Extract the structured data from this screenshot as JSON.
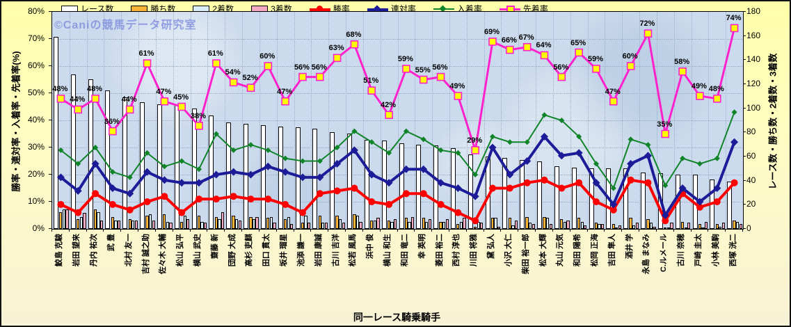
{
  "watermark": "©Caniの競馬データ研究室",
  "left_axis": {
    "title": "勝率・連対率・入着率・先着率(%)",
    "ticks": [
      "80%",
      "70%",
      "60%",
      "50%",
      "40%",
      "30%",
      "20%",
      "10%",
      "0%"
    ],
    "max": 80,
    "step": 10
  },
  "right_axis": {
    "title": "レース数・勝ち数・2着数・3着数",
    "ticks": [
      "180",
      "160",
      "140",
      "120",
      "100",
      "80",
      "60",
      "40",
      "20",
      "0"
    ],
    "max": 180,
    "step": 20
  },
  "x_axis": {
    "title": "同一レース騎乗騎手"
  },
  "chart_data": {
    "type": "bar_line_combo",
    "grid": "dotted",
    "left_ylim": [
      0,
      80
    ],
    "right_ylim": [
      0,
      180
    ],
    "legend_position": "top",
    "categories": [
      "鮫島 克駿",
      "岩田 望来",
      "丹内 祐次",
      "武 豊",
      "北村 友一",
      "吉村 誠之助",
      "佐々木 大輔",
      "松山 弘平",
      "横山 武史",
      "齋藤 新",
      "団野 大成",
      "高杉 吏麒",
      "田口 貫太",
      "坂井 瑠星",
      "池添 謙一",
      "岩田 康誠",
      "古川 吉洋",
      "松若 風馬",
      "浜中 俊",
      "横山 和生",
      "和田 竜二",
      "幸 英明",
      "菱田 裕二",
      "西村 淳也",
      "川田 将雅",
      "黛 弘人",
      "小沢 大仁",
      "柴田 裕一郎",
      "松本 大輝",
      "丸山 元気",
      "和田 陽希",
      "松岡 正海",
      "吉田 隼人",
      "酒井 学",
      "永島 まなみ",
      "C.ルメール",
      "古川 奈穂",
      "戸崎 圭太",
      "小林 美駒",
      "西塚 洸二"
    ],
    "bar_series": [
      {
        "key": "races",
        "name": "レース数",
        "color": "#FFFFFF",
        "axis": "right",
        "values": [
          159,
          128,
          124,
          115,
          109,
          105,
          103,
          103,
          100,
          94,
          88,
          87,
          86,
          85,
          84,
          83,
          80,
          79,
          74,
          73,
          71,
          70,
          69,
          67,
          62,
          60,
          59,
          57,
          56,
          52,
          51,
          50,
          50,
          50,
          47,
          46,
          45,
          45,
          41,
          39
        ]
      },
      {
        "key": "wins",
        "name": "勝ち数",
        "color": "#FFB53A",
        "axis": "right",
        "values": [
          14,
          8,
          16,
          10,
          8,
          11,
          12,
          6,
          11,
          10,
          11,
          10,
          9,
          8,
          5,
          11,
          11,
          12,
          7,
          7,
          9,
          9,
          6,
          4,
          2,
          9,
          9,
          10,
          10,
          8,
          9,
          5,
          4,
          9,
          8,
          1,
          6,
          4,
          4,
          7
        ]
      },
      {
        "key": "seconds",
        "name": "2着数",
        "color": "#D9EDF8",
        "axis": "right",
        "values": [
          16,
          10,
          14,
          7,
          7,
          12,
          6,
          11,
          6,
          8,
          8,
          8,
          10,
          10,
          11,
          5,
          8,
          11,
          7,
          6,
          6,
          6,
          6,
          6,
          6,
          9,
          3,
          5,
          9,
          6,
          6,
          4,
          1,
          3,
          5,
          1,
          1,
          1,
          2,
          6
        ]
      },
      {
        "key": "thirds",
        "name": "3着数",
        "color": "#F7A9C4",
        "axis": "right",
        "values": [
          16,
          13,
          7,
          7,
          7,
          7,
          5,
          8,
          5,
          14,
          7,
          10,
          5,
          4,
          5,
          5,
          5,
          6,
          9,
          8,
          10,
          8,
          8,
          9,
          5,
          2,
          7,
          4,
          4,
          7,
          3,
          4,
          3,
          5,
          2,
          5,
          5,
          6,
          5,
          4
        ]
      }
    ],
    "line_series": [
      {
        "key": "win_rate",
        "name": "勝率",
        "color": "#FF0000",
        "marker": "circle",
        "width": 4,
        "axis": "left",
        "values": [
          9,
          6,
          13,
          9,
          7,
          10,
          12,
          6,
          11,
          11,
          12,
          11,
          11,
          9,
          6,
          13,
          14,
          15,
          10,
          9,
          13,
          13,
          9,
          6,
          3,
          15,
          15,
          17,
          18,
          15,
          17,
          10,
          7,
          18,
          17,
          3,
          13,
          8,
          10,
          17
        ]
      },
      {
        "key": "quinella_rate",
        "name": "連対率",
        "color": "#1C1C99",
        "marker": "diamond",
        "width": 4,
        "axis": "left",
        "values": [
          19,
          14,
          24,
          15,
          13,
          21,
          18,
          17,
          17,
          20,
          21,
          20,
          23,
          21,
          19,
          19,
          24,
          29,
          20,
          17,
          22,
          22,
          17,
          15,
          12,
          30,
          20,
          25,
          34,
          27,
          28,
          17,
          9,
          24,
          27,
          5,
          15,
          10,
          15,
          32
        ]
      },
      {
        "key": "placing_rate",
        "name": "入着率",
        "color": "#108428",
        "marker": "diamond-small",
        "width": 2,
        "axis": "left",
        "values": [
          29,
          24,
          30,
          21,
          19,
          28,
          23,
          25,
          22,
          35,
          29,
          31,
          29,
          26,
          25,
          25,
          30,
          36,
          32,
          28,
          36,
          33,
          29,
          28,
          20,
          34,
          32,
          32,
          42,
          40,
          34,
          24,
          15,
          33,
          31,
          16,
          26,
          24,
          26,
          43
        ]
      },
      {
        "key": "finish_ahead_rate",
        "name": "先着率",
        "color": "#FF22CC",
        "marker": "yellow-square",
        "width": 3,
        "axis": "left",
        "data_labels": "percent",
        "values": [
          48,
          44,
          48,
          36,
          44,
          61,
          47,
          45,
          38,
          61,
          54,
          52,
          60,
          47,
          56,
          56,
          63,
          68,
          51,
          42,
          59,
          55,
          56,
          49,
          29,
          69,
          66,
          67,
          64,
          56,
          65,
          59,
          47,
          60,
          72,
          35,
          58,
          49,
          48,
          74
        ]
      }
    ]
  }
}
